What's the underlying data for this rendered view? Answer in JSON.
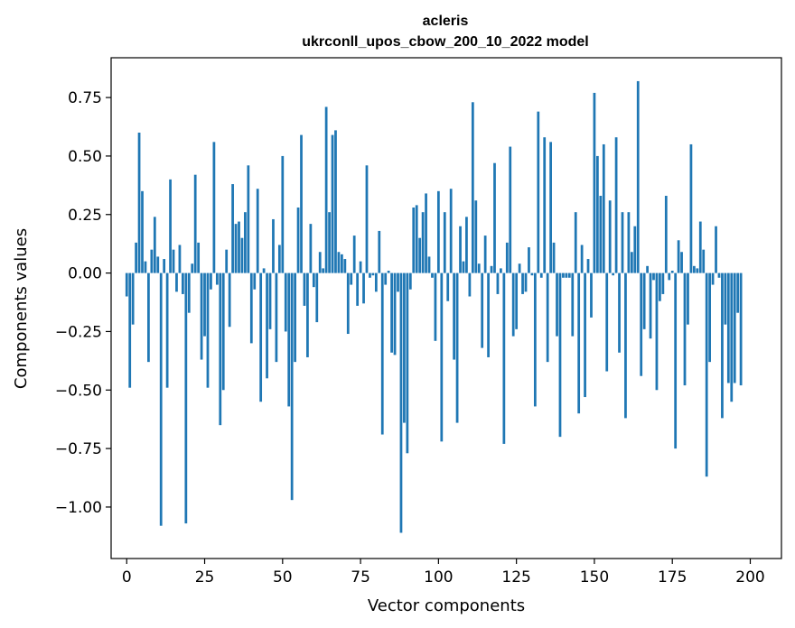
{
  "chart_data": {
    "type": "bar",
    "title": "acleris",
    "subtitle": "ukrconll_upos_cbow_200_10_2022 model",
    "xlabel": "Vector components",
    "ylabel": "Components values",
    "xlim": [
      -5,
      210
    ],
    "ylim": [
      -1.22,
      0.92
    ],
    "xticks": [
      0,
      25,
      50,
      75,
      100,
      125,
      150,
      175,
      200
    ],
    "xtick_labels": [
      "0",
      "25",
      "50",
      "75",
      "100",
      "125",
      "150",
      "175",
      "200"
    ],
    "yticks": [
      -1.0,
      -0.75,
      -0.5,
      -0.25,
      0.0,
      0.25,
      0.5,
      0.75
    ],
    "ytick_labels": [
      "−1.00",
      "−0.75",
      "−0.50",
      "−0.25",
      "0.00",
      "0.25",
      "0.50",
      "0.75"
    ],
    "grid": false,
    "bar_color": "#1f77b4",
    "x": [
      0,
      1,
      2,
      3,
      4,
      5,
      6,
      7,
      8,
      9,
      10,
      11,
      12,
      13,
      14,
      15,
      16,
      17,
      18,
      19,
      20,
      21,
      22,
      23,
      24,
      25,
      26,
      27,
      28,
      29,
      30,
      31,
      32,
      33,
      34,
      35,
      36,
      37,
      38,
      39,
      40,
      41,
      42,
      43,
      44,
      45,
      46,
      47,
      48,
      49,
      50,
      51,
      52,
      53,
      54,
      55,
      56,
      57,
      58,
      59,
      60,
      61,
      62,
      63,
      64,
      65,
      66,
      67,
      68,
      69,
      70,
      71,
      72,
      73,
      74,
      75,
      76,
      77,
      78,
      79,
      80,
      81,
      82,
      83,
      84,
      85,
      86,
      87,
      88,
      89,
      90,
      91,
      92,
      93,
      94,
      95,
      96,
      97,
      98,
      99,
      100,
      101,
      102,
      103,
      104,
      105,
      106,
      107,
      108,
      109,
      110,
      111,
      112,
      113,
      114,
      115,
      116,
      117,
      118,
      119,
      120,
      121,
      122,
      123,
      124,
      125,
      126,
      127,
      128,
      129,
      130,
      131,
      132,
      133,
      134,
      135,
      136,
      137,
      138,
      139,
      140,
      141,
      142,
      143,
      144,
      145,
      146,
      147,
      148,
      149,
      150,
      151,
      152,
      153,
      154,
      155,
      156,
      157,
      158,
      159,
      160,
      161,
      162,
      163,
      164,
      165,
      166,
      167,
      168,
      169,
      170,
      171,
      172,
      173,
      174,
      175,
      176,
      177,
      178,
      179,
      180,
      181,
      182,
      183,
      184,
      185,
      186,
      187,
      188,
      189,
      190,
      191,
      192,
      193,
      194,
      195,
      196,
      197,
      198,
      199
    ],
    "values": [
      -0.1,
      -0.49,
      -0.22,
      0.13,
      0.6,
      0.35,
      0.05,
      -0.38,
      0.1,
      0.24,
      0.07,
      -1.08,
      0.06,
      -0.49,
      0.4,
      0.1,
      -0.08,
      0.12,
      -0.09,
      -1.07,
      -0.17,
      0.04,
      0.42,
      0.13,
      -0.37,
      -0.27,
      -0.49,
      -0.07,
      0.56,
      -0.05,
      -0.65,
      -0.5,
      0.1,
      -0.23,
      0.38,
      0.21,
      0.22,
      0.15,
      0.26,
      0.46,
      -0.3,
      -0.07,
      0.36,
      -0.55,
      0.02,
      -0.45,
      -0.24,
      0.23,
      -0.38,
      0.12,
      0.5,
      -0.25,
      -0.57,
      -0.97,
      -0.38,
      0.28,
      0.59,
      -0.14,
      -0.36,
      0.21,
      -0.06,
      -0.21,
      0.09,
      0.02,
      0.71,
      0.26,
      0.59,
      0.61,
      0.09,
      0.08,
      0.06,
      -0.26,
      -0.05,
      0.16,
      -0.14,
      0.05,
      -0.13,
      0.46,
      -0.02,
      -0.01,
      -0.08,
      0.18,
      -0.69,
      -0.05,
      0.01,
      -0.34,
      -0.35,
      -0.08,
      -1.11,
      -0.64,
      -0.77,
      -0.07,
      0.28,
      0.29,
      0.15,
      0.26,
      0.34,
      0.07,
      -0.02,
      -0.29,
      0.35,
      -0.72,
      0.26,
      -0.12,
      0.36,
      -0.37,
      -0.64,
      0.2,
      0.05,
      0.24,
      -0.1,
      0.73,
      0.31,
      0.04,
      -0.32,
      0.16,
      -0.36,
      0.03,
      0.47,
      -0.09,
      0.02,
      -0.73,
      0.13,
      0.54,
      -0.27,
      -0.24,
      0.04,
      -0.09,
      -0.08,
      0.11,
      -0.01,
      -0.57,
      0.69,
      -0.02,
      0.58,
      -0.38,
      0.56,
      0.13,
      -0.27,
      -0.7,
      -0.02,
      -0.02,
      -0.02,
      -0.27,
      0.26,
      -0.6,
      0.12,
      -0.53,
      0.06,
      -0.19,
      0.77,
      0.5,
      0.33,
      0.55,
      -0.42,
      0.31,
      -0.01,
      0.58,
      -0.34,
      0.26,
      -0.62,
      0.26,
      0.09,
      0.2,
      0.82,
      -0.44,
      -0.24,
      0.03,
      -0.28,
      -0.03,
      -0.5,
      -0.12,
      -0.09,
      0.33,
      -0.03,
      0.01,
      -0.75,
      0.14,
      0.09,
      -0.48,
      -0.22,
      0.55,
      0.03,
      0.02,
      0.22,
      0.1,
      -0.87,
      -0.38,
      -0.05,
      0.2,
      -0.02,
      -0.62,
      -0.22,
      -0.47,
      -0.55,
      -0.47,
      -0.17,
      -0.48,
      0.0,
      0.0
    ]
  }
}
